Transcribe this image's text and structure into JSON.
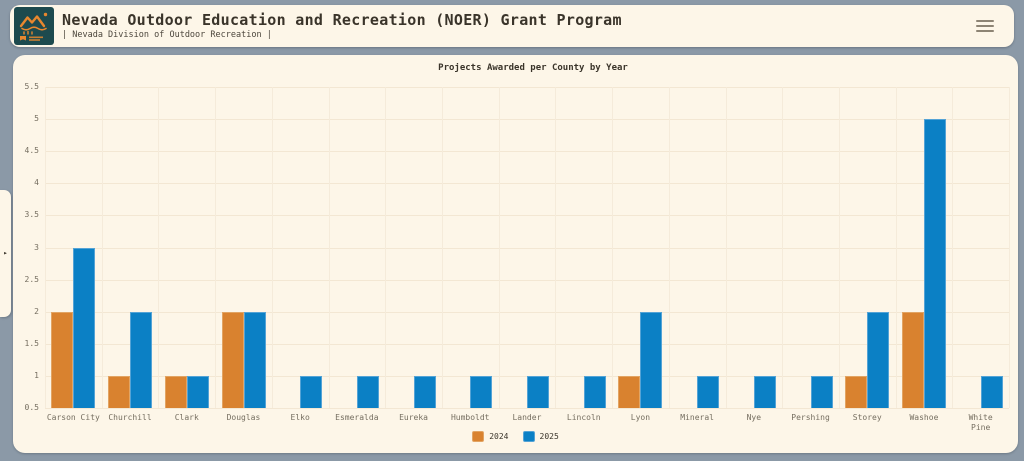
{
  "header": {
    "title": "Nevada Outdoor Education and Recreation (NOER) Grant Program",
    "subtitle": "| Nevada Division of Outdoor Recreation |",
    "logo_icon": "nevada-outdoor-recreation-logo",
    "menu_icon": "hamburger-menu-icon"
  },
  "sidebar_handle": {
    "icon": "chevron-right-icon",
    "glyph": "▸"
  },
  "chart_data": {
    "type": "bar",
    "title": "Projects Awarded per County by Year",
    "categories": [
      "Carson City",
      "Churchill",
      "Clark",
      "Douglas",
      "Elko",
      "Esmeralda",
      "Eureka",
      "Humboldt",
      "Lander",
      "Lincoln",
      "Lyon",
      "Mineral",
      "Nye",
      "Pershing",
      "Storey",
      "Washoe",
      "White\nPine"
    ],
    "series": [
      {
        "name": "2024",
        "color": "#d9822f",
        "border_color": "#e2a463",
        "values": [
          2,
          1,
          1,
          2,
          0,
          0,
          0,
          0,
          0,
          0,
          1,
          0,
          0,
          0,
          1,
          2,
          0
        ]
      },
      {
        "name": "2025",
        "color": "#0b80c5",
        "border_color": "#54a3d6",
        "values": [
          3,
          2,
          1,
          2,
          1,
          1,
          1,
          1,
          1,
          1,
          2,
          1,
          1,
          1,
          2,
          5,
          1
        ]
      }
    ],
    "ylim": [
      0.5,
      5.5
    ],
    "yticks": [
      0.5,
      1,
      1.5,
      2,
      2.5,
      3,
      3.5,
      4,
      4.5,
      5,
      5.5
    ],
    "ytick_labels": [
      "0.5",
      "1",
      "1.5",
      "2",
      "2.5",
      "3",
      "3.5",
      "4",
      "4.5",
      "5",
      "5.5"
    ],
    "xlabel": "",
    "ylabel": "",
    "grid": true,
    "legend_position": "bottom"
  },
  "colors": {
    "page_bg": "#8b99a7",
    "card_bg": "#fdf6e8",
    "grid_line": "#f3e7d3",
    "text_dark": "#3a342a",
    "text_muted": "#756e60",
    "logo_teal": "#1d4a4e",
    "logo_orange": "#e8872e",
    "bar_2024": "#d9822f",
    "bar_2025": "#0b80c5"
  }
}
